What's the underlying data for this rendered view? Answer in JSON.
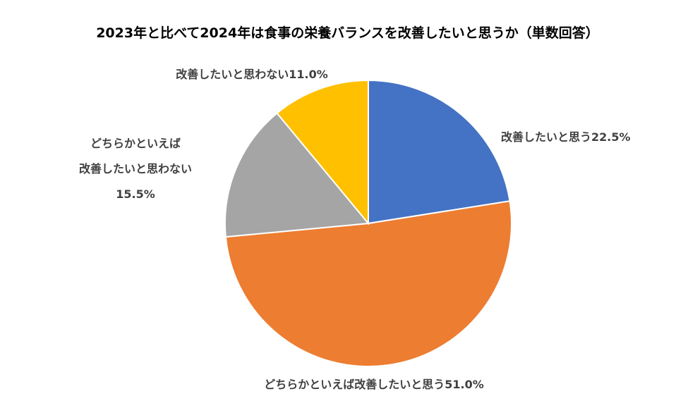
{
  "chart_data": {
    "type": "pie",
    "title": "2023年と比べて2024年は食事の栄養バランスを改善したいと思うか（単数回答）",
    "categories": [
      "改善したいと思う",
      "どちらかといえば改善したいと思う",
      "どちらかといえば\n改善したいと思わない",
      "改善したいと思わない"
    ],
    "values": [
      22.5,
      51.0,
      15.5,
      11.0
    ],
    "value_labels": [
      "22.5%",
      "51.0%",
      "15.5%",
      "11.0%"
    ],
    "colors": [
      "#4472c4",
      "#ed7d31",
      "#a5a5a5",
      "#ffc000"
    ]
  }
}
